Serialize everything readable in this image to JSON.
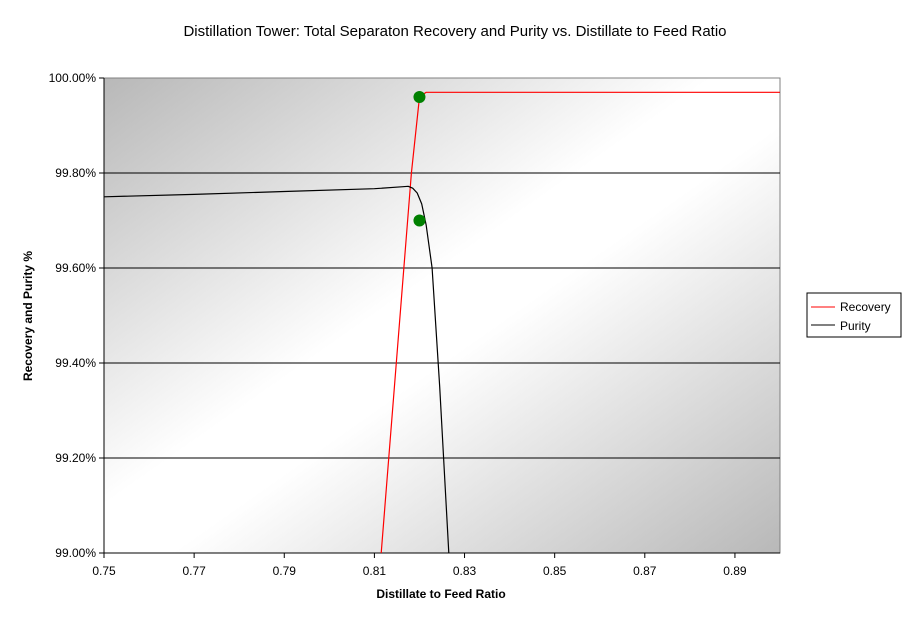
{
  "chart_data": {
    "type": "line",
    "title": "Distillation Tower:  Total Separaton Recovery and Purity vs. Distillate to Feed Ratio",
    "xlabel": "Distillate to Feed Ratio",
    "ylabel": "Recovery and Purity %",
    "xlim": [
      0.75,
      0.9
    ],
    "ylim": [
      99.0,
      100.0
    ],
    "x_ticks": [
      "0.75",
      "0.77",
      "0.79",
      "0.81",
      "0.83",
      "0.85",
      "0.87",
      "0.89"
    ],
    "x_tick_values": [
      0.75,
      0.77,
      0.79,
      0.81,
      0.83,
      0.85,
      0.87,
      0.89
    ],
    "y_ticks": [
      "99.00%",
      "99.20%",
      "99.40%",
      "99.60%",
      "99.80%",
      "100.00%"
    ],
    "y_tick_values": [
      99.0,
      99.2,
      99.4,
      99.6,
      99.8,
      100.0
    ],
    "grid": "horizontal",
    "legend_position": "right",
    "series": [
      {
        "name": "Recovery",
        "color": "#ff0000",
        "x": [
          0.8115,
          0.8182,
          0.82,
          0.8215,
          0.83,
          0.85,
          0.87,
          0.9
        ],
        "y": [
          99.0,
          99.8,
          99.96,
          99.97,
          99.97,
          99.97,
          99.97,
          99.97
        ]
      },
      {
        "name": "Purity",
        "color": "#000000",
        "x": [
          0.75,
          0.77,
          0.79,
          0.81,
          0.816,
          0.8175,
          0.8185,
          0.8195,
          0.8205,
          0.8215,
          0.8228,
          0.8245,
          0.8265
        ],
        "y": [
          99.75,
          99.755,
          99.761,
          99.767,
          99.771,
          99.772,
          99.768,
          99.758,
          99.735,
          99.69,
          99.6,
          99.35,
          99.0
        ]
      }
    ],
    "markers": [
      {
        "x": 0.82,
        "y": 99.96,
        "color": "#008000"
      },
      {
        "x": 0.82,
        "y": 99.7,
        "color": "#008000"
      }
    ]
  }
}
